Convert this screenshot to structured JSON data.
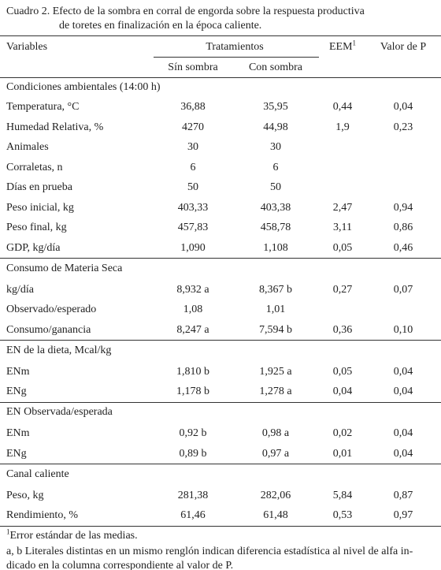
{
  "caption": {
    "lines": [
      "Cuadro 2. Efecto de la sombra en corral de engorda sobre la respuesta productiva",
      "de toretes en finalización en la época caliente."
    ]
  },
  "header": {
    "variables": "Variables",
    "treatments": "Tratamientos",
    "eem": "EEM",
    "eem_note": "1",
    "p": "Valor de P",
    "without_shade": "Sín sombra",
    "with_shade": "Con sombra"
  },
  "sections": [
    {
      "title": "Condiciones ambientales (14:00 h)",
      "rows": [
        [
          "Temperatura, °C",
          "36,88",
          "35,95",
          "0,44",
          "0,04"
        ],
        [
          "Humedad Relativa, %",
          "4270",
          "44,98",
          "1,9",
          "0,23"
        ],
        [
          "Animales",
          "30",
          "30"
        ],
        [
          "Corraletas, n",
          "6",
          "6"
        ],
        [
          "Días en prueba",
          "50",
          "50"
        ],
        [
          "Peso inicial, kg",
          "403,33",
          "403,38",
          "2,47",
          "0,94"
        ],
        [
          "Peso final, kg",
          "457,83",
          "458,78",
          "3,11",
          "0,86"
        ],
        [
          "GDP, kg/día",
          "1,090",
          "1,108",
          "0,05",
          "0,46"
        ]
      ]
    },
    {
      "title": "Consumo de Materia Seca",
      "rows": [
        [
          "kg/día",
          "8,932 a",
          "8,367 b",
          "0,27",
          "0,07"
        ],
        [
          "Observado/esperado",
          "1,08",
          "1,01"
        ],
        [
          "Consumo/ganancia",
          "8,247 a",
          "7,594 b",
          "0,36",
          "0,10"
        ]
      ]
    },
    {
      "title": "EN de la dieta, Mcal/kg",
      "rows": [
        [
          "ENm",
          "1,810 b",
          "1,925 a",
          "0,05",
          "0,04"
        ],
        [
          "ENg",
          "1,178 b",
          "1,278 a",
          "0,04",
          "0,04"
        ]
      ]
    },
    {
      "title": "EN Observada/esperada",
      "rows": [
        [
          "ENm",
          "0,92 b",
          "0,98 a",
          "0,02",
          "0,04"
        ],
        [
          "ENg",
          "0,89 b",
          "0,97 a",
          "0,01",
          "0,04"
        ]
      ]
    },
    {
      "title": "Canal caliente",
      "rows": [
        [
          "Peso, kg",
          "281,38",
          "282,06",
          "5,84",
          "0,87"
        ],
        [
          "Rendimiento, %",
          "61,46",
          "61,48",
          "0,53",
          "0,97"
        ]
      ]
    }
  ],
  "footnotes": {
    "marker": "1",
    "eem": "Error estándar de las medias.",
    "letters": [
      "a, b Literales distintas en un mismo renglón indican diferencia estadística al nivel de alfa in-",
      "dicado en la columna correspondiente al valor de P."
    ]
  }
}
